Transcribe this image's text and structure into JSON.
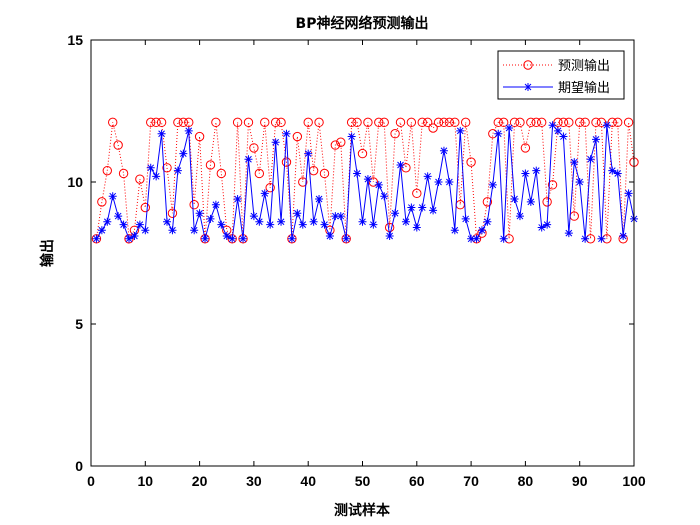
{
  "chart_data": {
    "type": "line",
    "title": "BP神经网络预测输出",
    "xlabel": "测试样本",
    "ylabel": "输出",
    "xlim": [
      0,
      100
    ],
    "ylim": [
      0,
      15
    ],
    "xticks": [
      "0",
      "10",
      "20",
      "30",
      "40",
      "50",
      "60",
      "70",
      "80",
      "90",
      "100"
    ],
    "yticks": [
      "0",
      "5",
      "10",
      "15"
    ],
    "grid": false,
    "legend_position": "top-right",
    "x": [
      1,
      2,
      3,
      4,
      5,
      6,
      7,
      8,
      9,
      10,
      11,
      12,
      13,
      14,
      15,
      16,
      17,
      18,
      19,
      20,
      21,
      22,
      23,
      24,
      25,
      26,
      27,
      28,
      29,
      30,
      31,
      32,
      33,
      34,
      35,
      36,
      37,
      38,
      39,
      40,
      41,
      42,
      43,
      44,
      45,
      46,
      47,
      48,
      49,
      50,
      51,
      52,
      53,
      54,
      55,
      56,
      57,
      58,
      59,
      60,
      61,
      62,
      63,
      64,
      65,
      66,
      67,
      68,
      69,
      70,
      71,
      72,
      73,
      74,
      75,
      76,
      77,
      78,
      79,
      80,
      81,
      82,
      83,
      84,
      85,
      86,
      87,
      88,
      89,
      90,
      91,
      92,
      93,
      94,
      95,
      96,
      97,
      98,
      99,
      100
    ],
    "series": [
      {
        "name": "预测输出",
        "color": "#ff0000",
        "style": "dotted",
        "marker": "circle",
        "values": [
          8.0,
          9.3,
          10.4,
          12.1,
          11.3,
          10.3,
          8.0,
          8.3,
          10.1,
          9.1,
          12.1,
          12.1,
          12.1,
          10.5,
          8.9,
          12.1,
          12.1,
          12.1,
          9.2,
          11.6,
          8.0,
          10.6,
          12.1,
          10.3,
          8.3,
          8.0,
          12.1,
          8.0,
          12.1,
          11.2,
          10.3,
          12.1,
          9.8,
          12.1,
          12.1,
          10.7,
          8.0,
          11.6,
          10.0,
          12.1,
          10.4,
          12.1,
          10.3,
          8.3,
          11.3,
          11.4,
          8.0,
          12.1,
          12.1,
          11.0,
          12.1,
          10.0,
          12.1,
          12.1,
          8.4,
          11.7,
          12.1,
          10.5,
          12.1,
          9.6,
          12.1,
          12.1,
          11.9,
          12.1,
          12.1,
          12.1,
          12.1,
          9.2,
          12.1,
          10.7,
          8.0,
          8.2,
          9.3,
          11.7,
          12.1,
          12.1,
          8.0,
          12.1,
          12.1,
          11.2,
          12.1,
          12.1,
          12.1,
          9.3,
          9.9,
          12.1,
          12.1,
          12.1,
          8.8,
          12.1,
          12.1,
          8.0,
          12.1,
          12.1,
          8.0,
          12.1,
          12.1,
          8.0,
          12.1,
          10.7
        ]
      },
      {
        "name": "期望输出",
        "color": "#0000ff",
        "style": "solid",
        "marker": "asterisk",
        "values": [
          8.0,
          8.3,
          8.6,
          9.5,
          8.8,
          8.5,
          8.0,
          8.1,
          8.5,
          8.3,
          10.5,
          10.2,
          11.7,
          8.6,
          8.3,
          10.4,
          11.0,
          11.8,
          8.3,
          8.9,
          8.0,
          8.7,
          9.2,
          8.5,
          8.1,
          8.0,
          9.4,
          8.0,
          10.8,
          8.8,
          8.6,
          9.6,
          8.5,
          11.4,
          8.6,
          11.7,
          8.0,
          8.9,
          8.5,
          11.0,
          8.6,
          9.4,
          8.5,
          8.1,
          8.8,
          8.8,
          8.0,
          11.6,
          10.3,
          8.6,
          10.1,
          8.5,
          9.9,
          9.5,
          8.1,
          8.9,
          10.6,
          8.6,
          9.1,
          8.4,
          9.1,
          10.2,
          9.0,
          10.0,
          11.1,
          10.0,
          8.3,
          11.8,
          8.7,
          8.0,
          8.0,
          8.3,
          8.6,
          9.9,
          11.7,
          8.0,
          11.9,
          9.4,
          8.8,
          10.3,
          9.3,
          10.4,
          8.4,
          8.5,
          12.0,
          11.8,
          11.6,
          8.2,
          10.7,
          10.0,
          8.0,
          10.8,
          11.5,
          8.0,
          12.0,
          10.4,
          10.3,
          8.1,
          9.6,
          8.7
        ]
      }
    ]
  }
}
